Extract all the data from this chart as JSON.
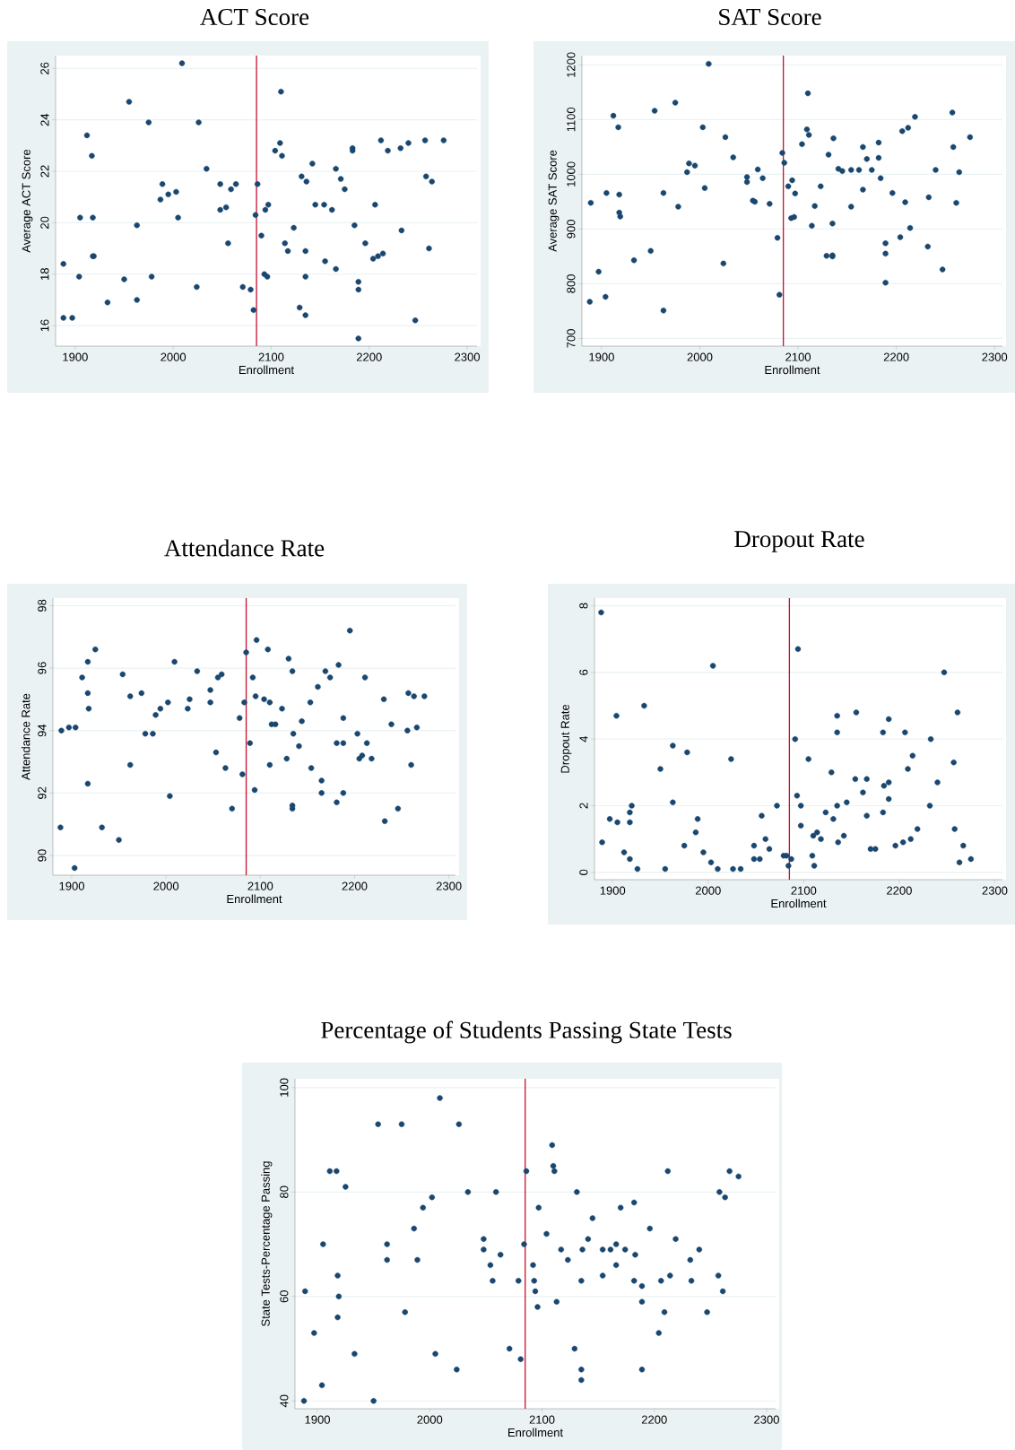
{
  "chart_data": [
    {
      "type": "scatter",
      "title": "ACT Score",
      "xlabel": "Enrollment",
      "ylabel": "Average ACT Score",
      "color": "#1a476f",
      "marker": "circle",
      "grid": "y",
      "xlim": [
        1880,
        2310
      ],
      "ylim": [
        15.2,
        26.5
      ],
      "xticks": [
        1900,
        2000,
        2100,
        2200,
        2300
      ],
      "yticks": [
        16,
        18,
        20,
        22,
        24,
        26
      ],
      "ref_lines": [
        {
          "axis": "x",
          "value": 2085,
          "color": "#c8102e"
        }
      ],
      "x": [
        2009,
        1955,
        1975,
        2026,
        1912,
        1917,
        2034,
        1989,
        1995,
        2003,
        1987,
        2005,
        1905,
        1918,
        1963,
        1888,
        1904,
        1918,
        1919,
        1950,
        1933,
        1963,
        1978,
        1888,
        1897,
        2024,
        2048,
        2059,
        2064,
        2048,
        2054,
        2056,
        2071,
        2079,
        2082,
        2084,
        2086,
        2090,
        2093,
        2096,
        2094,
        2097,
        2104,
        2109,
        2111,
        2110,
        2114,
        2117,
        2123,
        2131,
        2136,
        2142,
        2129,
        2135,
        2135,
        2135,
        2145,
        2154,
        2155,
        2162,
        2166,
        2171,
        2175,
        2166,
        2183,
        2183,
        2185,
        2189,
        2189,
        2189,
        2196,
        2204,
        2209,
        2214,
        2206,
        2212,
        2219,
        2232,
        2233,
        2240,
        2247,
        2257,
        2258,
        2264,
        2261,
        2276
      ],
      "values": [
        26.2,
        24.7,
        23.9,
        23.9,
        23.4,
        22.6,
        22.1,
        21.5,
        21.1,
        21.2,
        20.9,
        20.2,
        20.2,
        20.2,
        19.9,
        18.4,
        17.9,
        18.7,
        18.7,
        17.8,
        16.9,
        17.0,
        17.9,
        16.3,
        16.3,
        17.5,
        21.5,
        21.3,
        21.5,
        20.5,
        20.6,
        19.2,
        17.5,
        17.4,
        16.6,
        20.3,
        21.5,
        19.5,
        18.0,
        17.9,
        20.5,
        20.7,
        22.8,
        23.1,
        22.6,
        25.1,
        19.2,
        18.9,
        19.8,
        21.8,
        21.6,
        22.3,
        16.7,
        16.4,
        17.9,
        18.9,
        20.7,
        20.7,
        18.5,
        20.5,
        22.1,
        21.7,
        21.3,
        18.2,
        22.9,
        22.8,
        19.9,
        17.7,
        17.4,
        15.5,
        19.2,
        18.6,
        18.7,
        18.8,
        20.7,
        23.2,
        22.8,
        22.9,
        19.7,
        23.1,
        16.2,
        23.2,
        21.8,
        21.6,
        19.0,
        23.2
      ]
    },
    {
      "type": "scatter",
      "title": "SAT Score",
      "xlabel": "Enrollment",
      "ylabel": "Average SAT Score",
      "color": "#1a476f",
      "marker": "circle",
      "grid": "y",
      "xlim": [
        1880,
        2308
      ],
      "ylim": [
        686,
        1217
      ],
      "xticks": [
        1900,
        2000,
        2100,
        2200,
        2300
      ],
      "yticks": [
        700,
        800,
        900,
        1000,
        1100,
        1200
      ],
      "ref_lines": [
        {
          "axis": "x",
          "value": 2085,
          "color": "#c8102e"
        }
      ],
      "x": [
        1889,
        1888,
        1897,
        1904,
        1905,
        1912,
        1917,
        1918,
        1918,
        1919,
        1933,
        1950,
        1954,
        1963,
        1963,
        1975,
        1978,
        1987,
        1989,
        1995,
        2003,
        2005,
        2009,
        2024,
        2026,
        2034,
        2048,
        2048,
        2054,
        2056,
        2059,
        2064,
        2071,
        2079,
        2081,
        2084,
        2086,
        2090,
        2093,
        2096,
        2094,
        2097,
        2104,
        2109,
        2111,
        2110,
        2114,
        2117,
        2123,
        2129,
        2135,
        2135,
        2131,
        2136,
        2135,
        2141,
        2145,
        2154,
        2154,
        2162,
        2166,
        2166,
        2170,
        2175,
        2182,
        2182,
        2184,
        2189,
        2189,
        2189,
        2196,
        2204,
        2206,
        2209,
        2212,
        2214,
        2219,
        2232,
        2233,
        2240,
        2247,
        2257,
        2258,
        2261,
        2264,
        2275
      ],
      "values": [
        948,
        767,
        822,
        776,
        966,
        1107,
        1086,
        963,
        930,
        923,
        843,
        860,
        1116,
        966,
        751,
        1131,
        941,
        1004,
        1020,
        1016,
        1086,
        975,
        1202,
        837,
        1068,
        1031,
        995,
        986,
        952,
        950,
        1009,
        993,
        946,
        884,
        780,
        1039,
        1021,
        978,
        920,
        922,
        989,
        965,
        1055,
        1082,
        1072,
        1148,
        906,
        942,
        978,
        851,
        852,
        850,
        1036,
        1066,
        910,
        1010,
        1006,
        1008,
        941,
        1008,
        1050,
        972,
        1028,
        1008,
        1058,
        1030,
        993,
        874,
        855,
        802,
        966,
        885,
        1079,
        949,
        1085,
        902,
        1105,
        868,
        958,
        1008,
        826,
        1113,
        1050,
        948,
        1004,
        1068
      ]
    },
    {
      "type": "scatter",
      "title": "Attendance Rate",
      "xlabel": "Enrollment",
      "ylabel": "Attendance Rate",
      "color": "#1a476f",
      "marker": "circle",
      "grid": "y",
      "xlim": [
        1880,
        2307
      ],
      "ylim": [
        89.37,
        98.24
      ],
      "xticks": [
        1900,
        2000,
        2100,
        2200,
        2300
      ],
      "yticks": [
        90,
        92,
        94,
        96,
        98
      ],
      "ref_lines": [
        {
          "axis": "x",
          "value": 2085,
          "color": "#c8102e"
        }
      ],
      "x": [
        1889,
        1888,
        1897,
        1904,
        1903,
        1911,
        1917,
        1917,
        1918,
        1917,
        1925,
        1932,
        1950,
        1954,
        1962,
        1962,
        1974,
        1978,
        1986,
        1989,
        1994,
        2002,
        2004,
        2009,
        2023,
        2025,
        2033,
        2047,
        2047,
        2053,
        2055,
        2059,
        2063,
        2070,
        2078,
        2081,
        2083,
        2085,
        2089,
        2092,
        2094,
        2095,
        2096,
        2104,
        2108,
        2110,
        2112,
        2116,
        2110,
        2123,
        2128,
        2130,
        2134,
        2135,
        2134,
        2134,
        2141,
        2144,
        2153,
        2154,
        2161,
        2165,
        2165,
        2169,
        2174,
        2181,
        2181,
        2183,
        2188,
        2188,
        2188,
        2195,
        2203,
        2205,
        2208,
        2211,
        2213,
        2218,
        2231,
        2232,
        2239,
        2246,
        2256,
        2257,
        2260,
        2263,
        2266,
        2274
      ],
      "values": [
        94.0,
        90.9,
        94.1,
        94.1,
        89.6,
        95.7,
        96.2,
        95.2,
        94.7,
        92.3,
        96.6,
        90.9,
        90.5,
        95.8,
        95.1,
        92.9,
        95.2,
        93.9,
        93.9,
        94.5,
        94.7,
        94.9,
        91.9,
        96.2,
        94.7,
        95.0,
        95.9,
        95.3,
        94.9,
        93.3,
        95.7,
        95.8,
        92.8,
        91.5,
        94.4,
        92.6,
        94.9,
        96.5,
        93.6,
        95.7,
        92.1,
        95.1,
        96.9,
        95.0,
        96.6,
        94.9,
        94.2,
        94.2,
        92.9,
        94.7,
        93.1,
        96.3,
        95.9,
        93.9,
        91.6,
        91.5,
        93.5,
        94.3,
        94.9,
        92.8,
        95.4,
        92.4,
        92.0,
        95.9,
        95.7,
        93.6,
        91.7,
        96.1,
        94.4,
        93.6,
        92.0,
        97.2,
        93.9,
        93.1,
        93.2,
        95.7,
        93.6,
        93.1,
        95.0,
        91.1,
        94.2,
        91.5,
        94.0,
        95.2,
        92.9,
        95.1,
        94.1,
        95.1
      ]
    },
    {
      "type": "scatter",
      "title": "Dropout Rate",
      "xlabel": "Enrollment",
      "ylabel": "Dropout Rate",
      "color": "#1a476f",
      "marker": "circle",
      "grid": "y",
      "xlim": [
        1881,
        2308
      ],
      "ylim": [
        -0.22,
        8.23
      ],
      "xticks": [
        1900,
        2000,
        2100,
        2200,
        2300
      ],
      "yticks": [
        0,
        2,
        4,
        6,
        8
      ],
      "ref_lines": [
        {
          "axis": "x",
          "value": 2085,
          "color": "#c8102e"
        }
      ],
      "x": [
        1888,
        1889,
        1897,
        1904,
        1905,
        1912,
        1918,
        1918,
        1918,
        1920,
        1926,
        1933,
        1950,
        1955,
        1963,
        1963,
        1975,
        1978,
        1987,
        1989,
        1995,
        2003,
        2005,
        2010,
        2024,
        2026,
        2034,
        2048,
        2048,
        2054,
        2056,
        2060,
        2064,
        2072,
        2079,
        2082,
        2087,
        2084,
        2091,
        2094,
        2093,
        2097,
        2097,
        2105,
        2109,
        2111,
        2110,
        2114,
        2118,
        2123,
        2129,
        2131,
        2135,
        2135,
        2135,
        2136,
        2142,
        2145,
        2154,
        2155,
        2162,
        2166,
        2166,
        2170,
        2175,
        2183,
        2183,
        2184,
        2189,
        2189,
        2189,
        2196,
        2204,
        2206,
        2209,
        2212,
        2214,
        2219,
        2232,
        2233,
        2240,
        2247,
        2257,
        2258,
        2261,
        2263,
        2267,
        2275
      ],
      "values": [
        7.8,
        0.9,
        1.6,
        4.7,
        1.5,
        0.6,
        0.4,
        1.5,
        1.8,
        2.0,
        0.1,
        5.0,
        3.1,
        0.1,
        3.8,
        2.1,
        0.8,
        3.6,
        1.2,
        1.6,
        0.6,
        0.3,
        6.2,
        0.1,
        3.4,
        0.1,
        0.1,
        0.8,
        0.4,
        0.4,
        1.7,
        1.0,
        0.7,
        2.0,
        0.5,
        0.5,
        0.4,
        0.2,
        4.0,
        6.7,
        2.3,
        2.0,
        1.4,
        3.4,
        0.5,
        0.2,
        1.1,
        1.2,
        1.0,
        1.8,
        3.0,
        1.6,
        4.7,
        4.2,
        2.0,
        0.9,
        1.1,
        2.1,
        2.8,
        4.8,
        2.4,
        2.8,
        1.7,
        0.7,
        0.7,
        4.2,
        1.8,
        2.6,
        4.6,
        2.7,
        2.2,
        0.8,
        0.9,
        4.2,
        3.1,
        1.0,
        3.5,
        1.3,
        2.0,
        4.0,
        2.7,
        6.0,
        3.3,
        1.3,
        4.8,
        0.3,
        0.8,
        0.4
      ]
    },
    {
      "type": "scatter",
      "title": "Percentage of Students Passing State Tests",
      "xlabel": "Enrollment",
      "ylabel": "State Tests-Percentage Passing",
      "color": "#1a476f",
      "marker": "circle",
      "grid": "y",
      "xlim": [
        1880,
        2308
      ],
      "ylim": [
        38.5,
        101.7
      ],
      "xticks": [
        1900,
        2000,
        2100,
        2200,
        2300
      ],
      "yticks": [
        40,
        60,
        80,
        100
      ],
      "ref_lines": [
        {
          "axis": "x",
          "value": 2085,
          "color": "#c8102e"
        }
      ],
      "x": [
        2009,
        1954,
        1975,
        2026,
        2109,
        1911,
        1917,
        2086,
        2110,
        2111,
        2212,
        2267,
        2275,
        1925,
        2034,
        2059,
        2131,
        2258,
        2263,
        2002,
        1994,
        2097,
        2170,
        2182,
        2145,
        1986,
        2196,
        2104,
        2048,
        2141,
        2219,
        1905,
        1962,
        2084,
        2166,
        2048,
        2117,
        2136,
        2154,
        2161,
        2174,
        2240,
        2063,
        2183,
        2123,
        1962,
        1989,
        2232,
        2054,
        2092,
        2166,
        1918,
        2154,
        2214,
        2257,
        2056,
        2079,
        2093,
        2135,
        2182,
        2206,
        2233,
        2189,
        1889,
        2094,
        2261,
        1919,
        2113,
        2189,
        2096,
        1978,
        2209,
        2247,
        1918,
        1897,
        2204,
        2071,
        2129,
        1933,
        2005,
        2081,
        2024,
        2135,
        2189,
        2135,
        1904,
        1888,
        1950
      ],
      "values": [
        98,
        93,
        93,
        93,
        89,
        84,
        84,
        84,
        85,
        84,
        84,
        84,
        83,
        81,
        80,
        80,
        80,
        80,
        79,
        79,
        77,
        77,
        77,
        78,
        75,
        73,
        73,
        72,
        71,
        71,
        71,
        70,
        70,
        70,
        70,
        69,
        69,
        69,
        69,
        69,
        69,
        69,
        68,
        68,
        67,
        67,
        67,
        67,
        66,
        66,
        66,
        64,
        64,
        64,
        64,
        63,
        63,
        63,
        63,
        63,
        63,
        63,
        62,
        61,
        61,
        61,
        60,
        59,
        59,
        58,
        57,
        57,
        57,
        56,
        53,
        53,
        50,
        50,
        49,
        49,
        48,
        46,
        46,
        46,
        44,
        43,
        40,
        40
      ]
    }
  ]
}
